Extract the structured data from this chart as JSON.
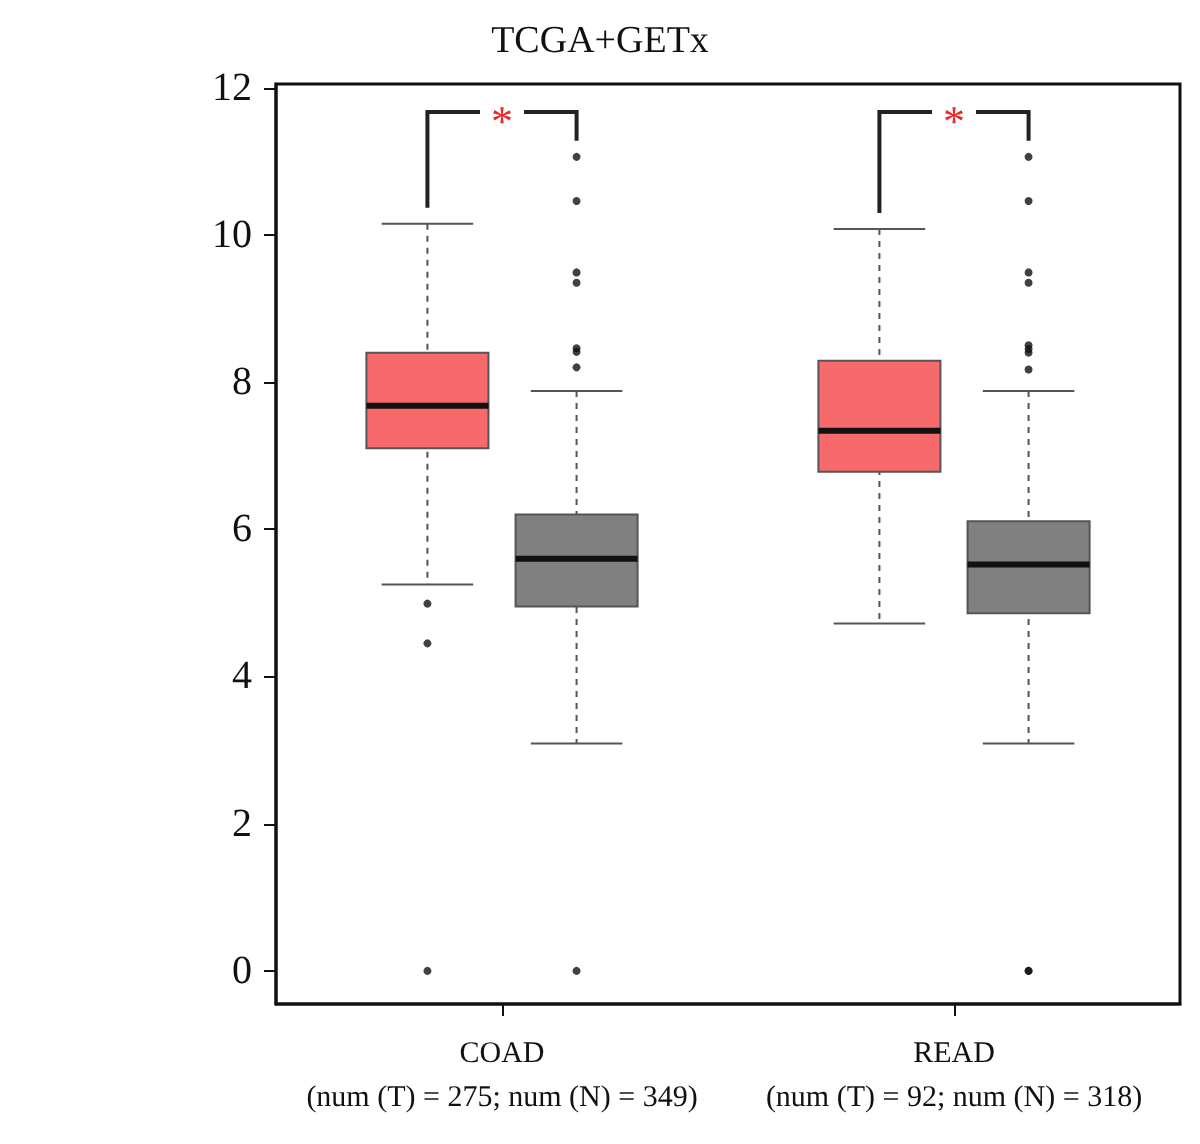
{
  "chart_data": {
    "type": "box",
    "title": "TCGA+GETx",
    "categories": [
      "COAD\n(num (T) = 275; num (N) = 349)",
      "READ\n(num (T) = 92; num (N) = 318)"
    ],
    "ylim": [
      -0.45,
      12.05
    ],
    "yticks": [
      0,
      2,
      4,
      6,
      8,
      10,
      12
    ],
    "grid": false,
    "series": [
      {
        "color": "#f8696b",
        "boxes": [
          {
            "low": 5.25,
            "q1": 7.1,
            "median": 7.68,
            "q3": 8.4,
            "high": 10.15,
            "outliers": [
              4.99,
              4.45,
              0
            ]
          },
          {
            "low": 4.72,
            "q1": 6.78,
            "median": 7.34,
            "q3": 8.29,
            "high": 10.08
          }
        ]
      },
      {
        "color": "#808080",
        "boxes": [
          {
            "low": 3.09,
            "q1": 4.95,
            "median": 5.6,
            "q3": 6.2,
            "high": 7.88,
            "outliers": [
              11.06,
              10.46,
              9.49,
              9.35,
              8.46,
              8.41,
              8.2,
              0
            ]
          },
          {
            "low": 3.09,
            "q1": 4.86,
            "median": 5.52,
            "q3": 6.11,
            "high": 7.88,
            "outliers": [
              11.06,
              10.46,
              9.49,
              9.35,
              8.5,
              8.45,
              8.4,
              8.17,
              0,
              0
            ]
          }
        ]
      }
    ],
    "annotations": [
      "*",
      "*"
    ]
  }
}
